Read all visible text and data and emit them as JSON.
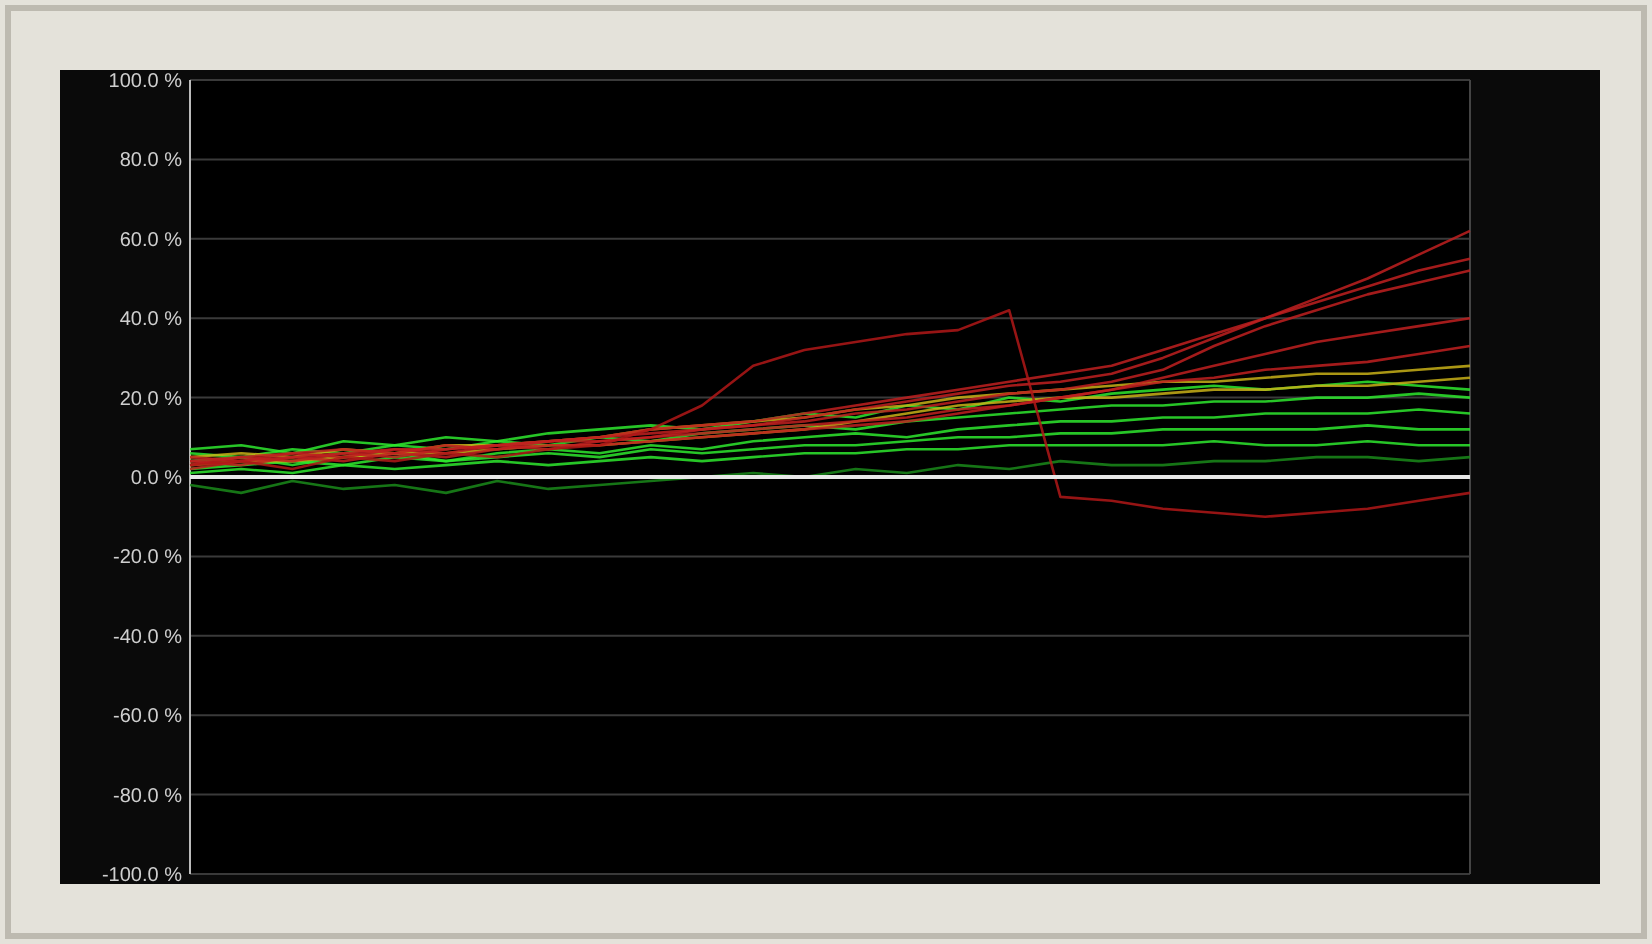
{
  "chart_data": {
    "type": "line",
    "categories": [
      null,
      null,
      null,
      null,
      null,
      null,
      null,
      null,
      null,
      null,
      null,
      null,
      null,
      null,
      null,
      null,
      null,
      null,
      null,
      null,
      null,
      null,
      null,
      null,
      null,
      null
    ],
    "ylim": [
      -100,
      100
    ],
    "yticks": [
      {
        "value": -100,
        "label": "-100.0 %"
      },
      {
        "value": -80,
        "label": "-80.0 %"
      },
      {
        "value": -60,
        "label": "-60.0 %"
      },
      {
        "value": -40,
        "label": "-40.0 %"
      },
      {
        "value": -20,
        "label": "-20.0 %"
      },
      {
        "value": 0,
        "label": "0.0 %"
      },
      {
        "value": 20,
        "label": "20.0 %"
      },
      {
        "value": 40,
        "label": "40.0 %"
      },
      {
        "value": 60,
        "label": "60.0 %"
      },
      {
        "value": 80,
        "label": "80.0 %"
      },
      {
        "value": 100,
        "label": "100.0 %"
      }
    ],
    "grid": "y",
    "marker": "none",
    "line_style": "solid",
    "series": [
      {
        "color": "#2ee82e",
        "values": [
          6,
          5,
          7,
          6,
          8,
          7,
          9,
          8,
          10,
          9,
          11,
          12,
          13,
          12,
          14,
          15,
          16,
          17,
          18,
          18,
          19,
          19,
          20,
          20,
          21,
          20
        ]
      },
      {
        "color": "#2ee82e",
        "values": [
          4,
          5,
          3,
          5,
          6,
          4,
          6,
          7,
          6,
          8,
          7,
          9,
          10,
          11,
          10,
          12,
          13,
          14,
          14,
          15,
          15,
          16,
          16,
          16,
          17,
          16
        ]
      },
      {
        "color": "#2ee82e",
        "values": [
          2,
          3,
          4,
          3,
          5,
          4,
          5,
          6,
          5,
          7,
          6,
          7,
          8,
          8,
          9,
          10,
          10,
          11,
          11,
          12,
          12,
          12,
          12,
          13,
          12,
          12
        ]
      },
      {
        "color": "#2ee82e",
        "values": [
          1,
          2,
          1,
          3,
          2,
          3,
          4,
          3,
          4,
          5,
          4,
          5,
          6,
          6,
          7,
          7,
          8,
          8,
          8,
          8,
          9,
          8,
          8,
          9,
          8,
          8
        ]
      },
      {
        "color": "#1a8a1a",
        "values": [
          -2,
          -4,
          -1,
          -3,
          -2,
          -4,
          -1,
          -3,
          -2,
          -1,
          0,
          1,
          0,
          2,
          1,
          3,
          2,
          4,
          3,
          3,
          4,
          4,
          5,
          5,
          4,
          5
        ]
      },
      {
        "color": "#2ee82e",
        "values": [
          7,
          8,
          6,
          9,
          8,
          10,
          9,
          11,
          12,
          13,
          12,
          14,
          16,
          15,
          18,
          17,
          20,
          19,
          21,
          22,
          23,
          22,
          23,
          24,
          23,
          22
        ]
      },
      {
        "color": "#c8b018",
        "values": [
          5,
          6,
          5,
          7,
          6,
          8,
          8,
          9,
          10,
          12,
          13,
          14,
          15,
          17,
          18,
          20,
          21,
          22,
          23,
          24,
          24,
          25,
          26,
          26,
          27,
          28
        ]
      },
      {
        "color": "#c8b018",
        "values": [
          3,
          4,
          4,
          5,
          6,
          6,
          7,
          8,
          8,
          9,
          10,
          11,
          12,
          14,
          16,
          18,
          19,
          20,
          20,
          21,
          22,
          22,
          23,
          23,
          24,
          25
        ]
      },
      {
        "color": "#c02020",
        "values": [
          4,
          5,
          6,
          5,
          7,
          6,
          8,
          9,
          10,
          11,
          12,
          13,
          15,
          17,
          19,
          21,
          23,
          24,
          26,
          30,
          35,
          40,
          45,
          50,
          56,
          62
        ]
      },
      {
        "color": "#c02020",
        "values": [
          5,
          4,
          6,
          7,
          6,
          8,
          7,
          9,
          10,
          12,
          13,
          14,
          16,
          18,
          20,
          22,
          24,
          26,
          28,
          32,
          36,
          40,
          44,
          48,
          52,
          55
        ]
      },
      {
        "color": "#c02020",
        "values": [
          3,
          5,
          4,
          6,
          7,
          7,
          8,
          9,
          9,
          10,
          12,
          13,
          14,
          16,
          17,
          19,
          21,
          22,
          24,
          27,
          33,
          38,
          42,
          46,
          49,
          52
        ]
      },
      {
        "color": "#c02020",
        "values": [
          4,
          3,
          5,
          6,
          5,
          7,
          8,
          7,
          9,
          10,
          11,
          12,
          13,
          14,
          15,
          17,
          18,
          20,
          22,
          25,
          28,
          31,
          34,
          36,
          38,
          40
        ]
      },
      {
        "color": "#c02020",
        "values": [
          2,
          4,
          5,
          4,
          6,
          5,
          7,
          8,
          8,
          9,
          10,
          11,
          12,
          13,
          14,
          16,
          18,
          20,
          22,
          24,
          25,
          27,
          28,
          29,
          31,
          33
        ]
      },
      {
        "color": "#b01818",
        "values": [
          3,
          4,
          2,
          5,
          4,
          6,
          5,
          7,
          8,
          12,
          18,
          28,
          32,
          34,
          36,
          37,
          42,
          -5,
          -6,
          -8,
          -9,
          -10,
          -9,
          -8,
          -6,
          -4
        ]
      }
    ]
  }
}
